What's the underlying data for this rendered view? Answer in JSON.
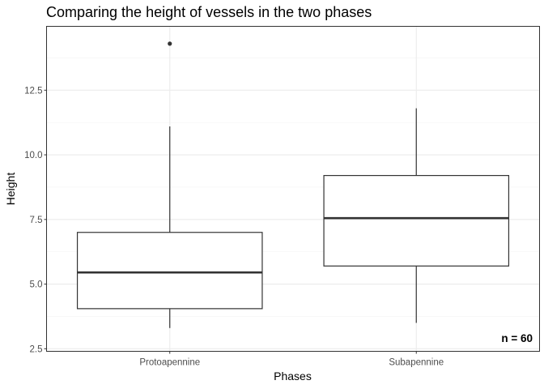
{
  "chart_data": {
    "type": "boxplot",
    "title": "Comparing the height of vessels in the two phases",
    "xlabel": "Phases",
    "ylabel": "Height",
    "categories": [
      "Protoapennine",
      "Subapennine"
    ],
    "boxes": [
      {
        "category": "Protoapennine",
        "whisker_low": 3.3,
        "q1": 4.05,
        "median": 5.45,
        "q3": 7.0,
        "whisker_high": 11.1,
        "outliers": [
          14.3
        ]
      },
      {
        "category": "Subapennine",
        "whisker_low": 3.5,
        "q1": 5.7,
        "median": 7.55,
        "q3": 9.2,
        "whisker_high": 11.8,
        "outliers": []
      }
    ],
    "ylim": [
      2.4,
      14.97
    ],
    "yticks": [
      2.5,
      5.0,
      7.5,
      10.0,
      12.5
    ],
    "ytick_labels": [
      "2.5",
      "5.0",
      "7.5",
      "10.0",
      "12.5"
    ],
    "grid": true,
    "annotation": "n = 60",
    "colors": {
      "box_fill": "#ffffff",
      "box_line": "#333333",
      "grid_major": "#ebebeb",
      "grid_minor": "#f5f5f5",
      "panel_border": "#333333"
    }
  }
}
